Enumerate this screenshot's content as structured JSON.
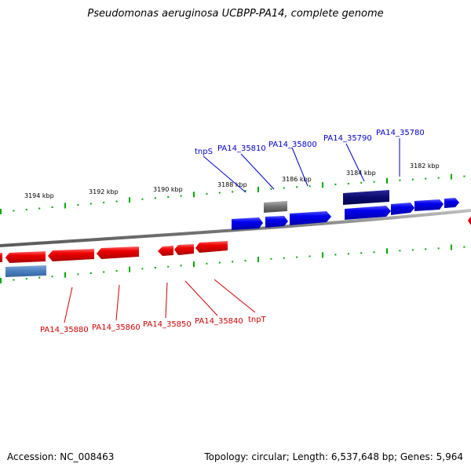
{
  "title": "Pseudomonas aeruginosa UCBPP-PA14, complete genome",
  "footer": {
    "accession": "Accession: NC_008463",
    "summary": "Topology: circular; Length: 6,537,648 bp; Genes: 5,964"
  },
  "scale_labels": [
    "3194 kbp",
    "3192 kbp",
    "3190 kbp",
    "3188 kbp",
    "3186 kbp",
    "3184 kbp",
    "3182 kbp"
  ],
  "forward_gene_labels": [
    "tnpS",
    "PA14_35810",
    "PA14_35800",
    "PA14_35790",
    "PA14_35780"
  ],
  "reverse_gene_labels": [
    "PA14_35880",
    "PA14_35860",
    "PA14_35850",
    "PA14_35840",
    "tnpT"
  ],
  "colors": {
    "forward": "#0000ee",
    "reverse": "#ee0000",
    "backbone": "#808080",
    "tick": "#00aa00",
    "highlight_dark": "#0a0a6e",
    "highlight_gray": "#666666",
    "highlight_steel": "#4a7fbf"
  }
}
